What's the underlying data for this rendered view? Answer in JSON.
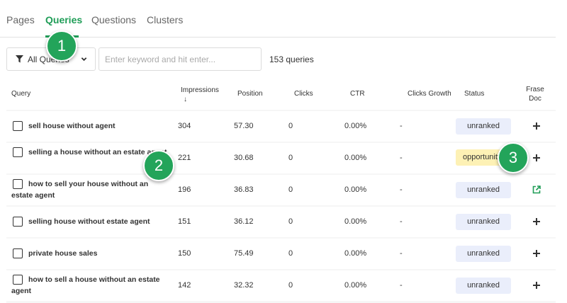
{
  "tabs": [
    {
      "label": "Pages"
    },
    {
      "label": "Queries"
    },
    {
      "label": "Questions"
    },
    {
      "label": "Clusters"
    }
  ],
  "toolbar": {
    "filter_label": "All Queries",
    "search_placeholder": "Enter keyword and hit enter...",
    "search_value": "",
    "query_count": "153 queries"
  },
  "columns": {
    "query": "Query",
    "impressions": "Impressions",
    "sort_arrow": "↓",
    "position": "Position",
    "clicks": "Clicks",
    "ctr": "CTR",
    "clicks_growth": "Clicks Growth",
    "status": "Status",
    "frase_doc_line1": "Frase",
    "frase_doc_line2": "Doc"
  },
  "rows": [
    {
      "query": "sell house without agent",
      "impressions": "304",
      "position": "57.30",
      "clicks": "0",
      "ctr": "0.00%",
      "growth": "-",
      "status": "unranked",
      "doc": "plus-icon"
    },
    {
      "query": "selling a house without an estate agent",
      "impressions": "221",
      "position": "30.68",
      "clicks": "0",
      "ctr": "0.00%",
      "growth": "-",
      "status": "opportunity",
      "doc": "plus-icon"
    },
    {
      "query": "how to sell your house without an estate agent",
      "impressions": "196",
      "position": "36.83",
      "clicks": "0",
      "ctr": "0.00%",
      "growth": "-",
      "status": "unranked",
      "doc": "external-link-icon"
    },
    {
      "query": "selling house without estate agent",
      "impressions": "151",
      "position": "36.12",
      "clicks": "0",
      "ctr": "0.00%",
      "growth": "-",
      "status": "unranked",
      "doc": "plus-icon"
    },
    {
      "query": "private house sales",
      "impressions": "150",
      "position": "75.49",
      "clicks": "0",
      "ctr": "0.00%",
      "growth": "-",
      "status": "unranked",
      "doc": "plus-icon"
    },
    {
      "query": "how to sell a house without an estate agent",
      "impressions": "142",
      "position": "32.32",
      "clicks": "0",
      "ctr": "0.00%",
      "growth": "-",
      "status": "unranked",
      "doc": "plus-icon"
    }
  ],
  "markers": [
    "1",
    "2",
    "3"
  ],
  "colors": {
    "accent": "#1f9d57",
    "marker": "#23a45a",
    "badge_unranked": "#eaeefb",
    "badge_opportunity": "#fdf1b5"
  }
}
